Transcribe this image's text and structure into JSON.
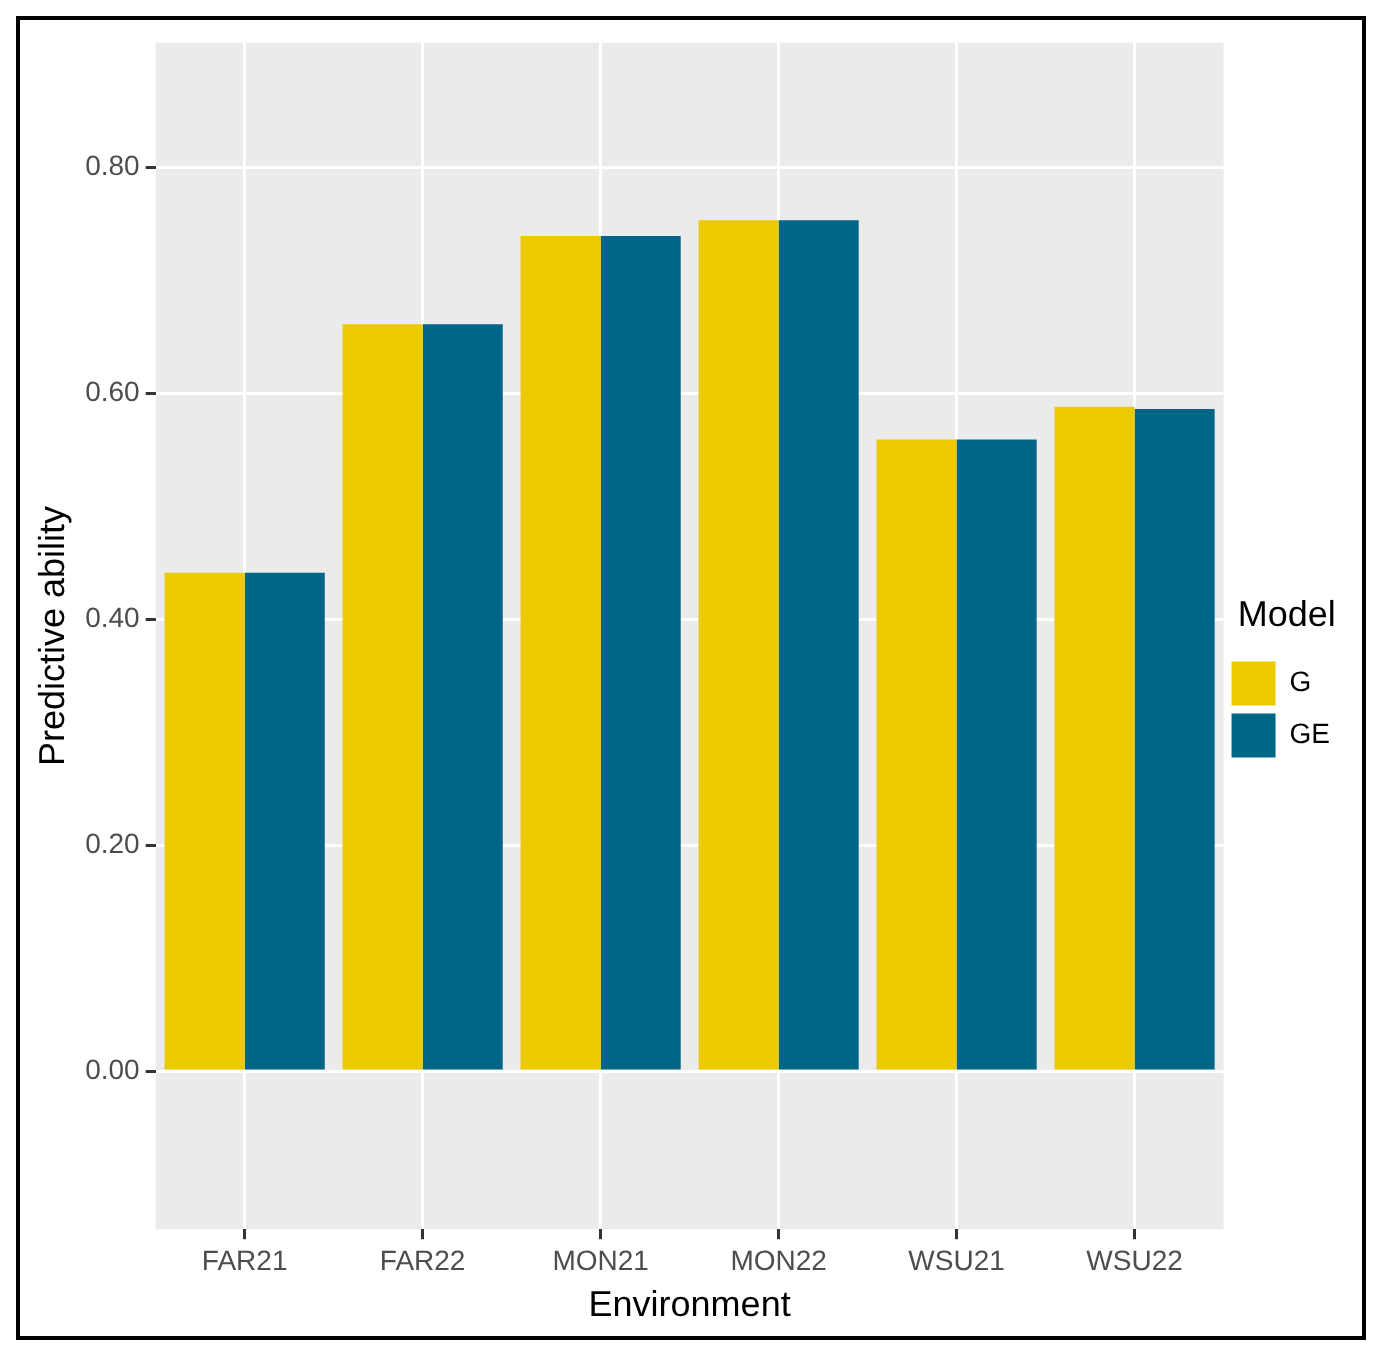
{
  "chart_data": {
    "type": "bar",
    "xlabel": "Environment",
    "ylabel": "Predictive ability",
    "legend_title": "Model",
    "categories": [
      "FAR21",
      "FAR22",
      "MON21",
      "MON22",
      "WSU21",
      "WSU22"
    ],
    "series": [
      {
        "name": "G",
        "color": "#edc900",
        "values": [
          0.441,
          0.661,
          0.739,
          0.753,
          0.559,
          0.588
        ]
      },
      {
        "name": "GE",
        "color": "#006688",
        "values": [
          0.441,
          0.661,
          0.739,
          0.753,
          0.559,
          0.586
        ]
      }
    ],
    "ylim": [
      -0.14,
      0.91
    ],
    "yticks": [
      {
        "value": 0,
        "label": "0.00"
      },
      {
        "value": 0.2,
        "label": "0.20"
      },
      {
        "value": 0.4,
        "label": "0.40"
      },
      {
        "value": 0.6,
        "label": "0.60"
      },
      {
        "value": 0.8,
        "label": "0.80"
      }
    ],
    "grid": true,
    "legend": "right"
  }
}
